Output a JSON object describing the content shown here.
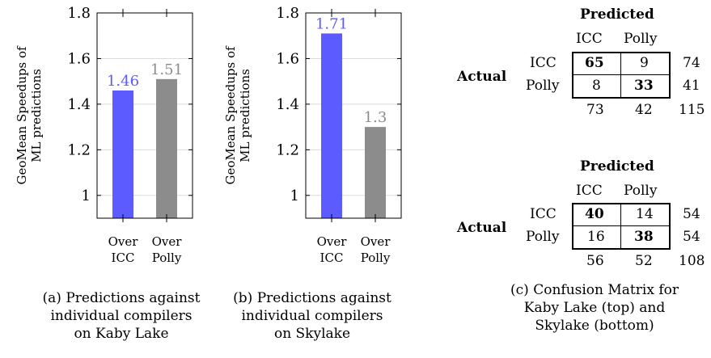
{
  "chart_data": [
    {
      "type": "bar",
      "ylabel": "GeoMean Speedups of\nML predictions",
      "ylim": [
        0.9,
        1.8
      ],
      "yticks": [
        1,
        1.2,
        1.4,
        1.6,
        1.8
      ],
      "categories": [
        "Over\nICC",
        "Over\nPolly"
      ],
      "values": [
        1.46,
        1.51
      ],
      "value_labels": [
        "1.46",
        "1.51"
      ],
      "colors": [
        "#5b5bff",
        "#8c8c8c"
      ],
      "caption": "(a) Predictions against\nindividual compilers\non Kaby Lake"
    },
    {
      "type": "bar",
      "ylabel": "GeoMean Speedups of\nML predictions",
      "ylim": [
        0.9,
        1.8
      ],
      "yticks": [
        1,
        1.2,
        1.4,
        1.6,
        1.8
      ],
      "categories": [
        "Over\nICC",
        "Over\nPolly"
      ],
      "values": [
        1.71,
        1.3
      ],
      "value_labels": [
        "1.71",
        "1.3"
      ],
      "colors": [
        "#5b5bff",
        "#8c8c8c"
      ],
      "caption": "(b) Predictions against\nindividual compilers\non Skylake"
    },
    {
      "type": "table",
      "title": "Predicted",
      "col_labels": [
        "ICC",
        "Polly"
      ],
      "row_title": "Actual",
      "row_labels": [
        "ICC",
        "Polly"
      ],
      "cells": [
        [
          "65",
          "9"
        ],
        [
          "8",
          "33"
        ]
      ],
      "row_totals": [
        "74",
        "41"
      ],
      "col_totals": [
        "73",
        "42"
      ],
      "grand_total": "115"
    },
    {
      "type": "table",
      "title": "Predicted",
      "col_labels": [
        "ICC",
        "Polly"
      ],
      "row_title": "Actual",
      "row_labels": [
        "ICC",
        "Polly"
      ],
      "cells": [
        [
          "40",
          "14"
        ],
        [
          "16",
          "38"
        ]
      ],
      "row_totals": [
        "54",
        "54"
      ],
      "col_totals": [
        "56",
        "52"
      ],
      "grand_total": "108"
    }
  ],
  "caption_c": "(c) Confusion Matrix for\nKaby Lake (top) and\nSkylake (bottom)"
}
